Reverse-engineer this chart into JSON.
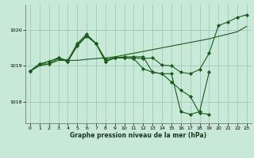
{
  "background_color": "#c8e8d8",
  "grid_color": "#a0ccb8",
  "line_color": "#1a5c1a",
  "xlabel": "Graphe pression niveau de la mer (hPa)",
  "xlim": [
    -0.5,
    23.5
  ],
  "ylim": [
    1017.4,
    1020.7
  ],
  "yticks": [
    1018,
    1019,
    1020
  ],
  "xticks": [
    0,
    1,
    2,
    3,
    4,
    5,
    6,
    7,
    8,
    9,
    10,
    11,
    12,
    13,
    14,
    15,
    16,
    17,
    18,
    19,
    20,
    21,
    22,
    23
  ],
  "series": [
    [
      1018.85,
      1019.0,
      1019.05,
      1019.15,
      1019.15,
      1019.15,
      1019.18,
      1019.2,
      1019.22,
      1019.25,
      1019.3,
      1019.35,
      1019.4,
      1019.45,
      1019.5,
      1019.55,
      1019.6,
      1019.65,
      1019.7,
      1019.75,
      1019.82,
      1019.88,
      1019.95,
      1020.1
    ],
    [
      1018.85,
      1019.05,
      1019.05,
      1019.2,
      1019.12,
      1019.55,
      1019.82,
      1019.62,
      1019.18,
      1019.22,
      1019.22,
      1019.22,
      1019.2,
      1019.22,
      1019.02,
      1019.0,
      1018.82,
      1018.78,
      1018.9,
      1019.35,
      1020.12,
      1020.22,
      1020.35,
      1020.42
    ],
    [
      1018.85,
      1019.05,
      1019.12,
      1019.22,
      1019.12,
      1019.58,
      1019.85,
      1019.62,
      1019.12,
      1019.22,
      1019.22,
      1019.2,
      1018.92,
      1018.82,
      1018.78,
      1018.78,
      1017.72,
      1017.65,
      1017.72,
      1018.82,
      null,
      null,
      null,
      null
    ],
    [
      1018.85,
      1019.05,
      1019.12,
      1019.22,
      1019.15,
      1019.62,
      1019.88,
      1019.62,
      1019.12,
      1019.22,
      1019.25,
      1019.25,
      1019.25,
      1018.82,
      1018.78,
      1018.55,
      1018.32,
      1018.15,
      1017.68,
      1017.65,
      null,
      null,
      null,
      null
    ]
  ],
  "marker_flags": [
    false,
    true,
    true,
    true
  ],
  "xlabel_fontsize": 5.5,
  "xlabel_fontweight": "bold",
  "tick_labelsize": 4.5
}
